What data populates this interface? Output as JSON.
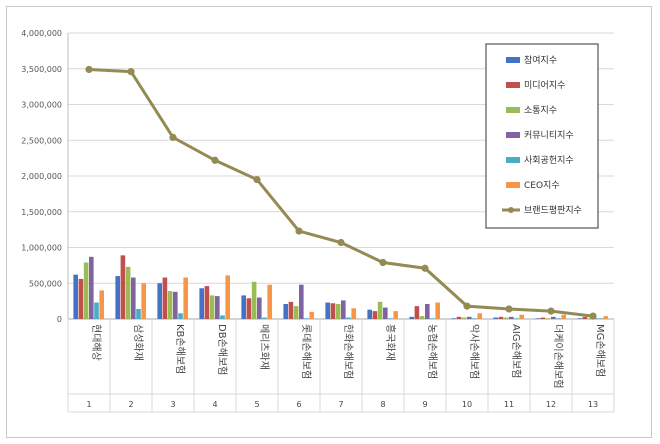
{
  "chart_data": {
    "type": "bar",
    "title": "",
    "xlabel": "",
    "ylabel": "",
    "ylim": [
      0,
      4000000
    ],
    "y_ticks": [
      "0",
      "500,000",
      "1,000,000",
      "1,500,000",
      "2,000,000",
      "2,500,000",
      "3,000,000",
      "3,500,000",
      "4,000,000"
    ],
    "grid": "horizontal",
    "legend_position": "right",
    "categories": [
      "현대해상",
      "삼성화재",
      "KB손해보험",
      "DB손해보험",
      "메리츠화재",
      "롯데손해보험",
      "한화손해보험",
      "흥국화재",
      "농협손해보험",
      "악사손해보험",
      "AIG손해보험",
      "더케이손해보험",
      "MG손해보험"
    ],
    "ranks": [
      "1",
      "2",
      "3",
      "4",
      "5",
      "6",
      "7",
      "8",
      "9",
      "10",
      "11",
      "12",
      "13"
    ],
    "series": [
      {
        "name": "참여지수",
        "color": "#4472c4",
        "values": [
          620000,
          600000,
          500000,
          430000,
          330000,
          210000,
          230000,
          130000,
          30000,
          10000,
          20000,
          10000,
          10000
        ]
      },
      {
        "name": "미디어지수",
        "color": "#c0504d",
        "values": [
          560000,
          890000,
          580000,
          460000,
          290000,
          240000,
          220000,
          110000,
          180000,
          30000,
          30000,
          20000,
          30000
        ]
      },
      {
        "name": "소통지수",
        "color": "#9bbb59",
        "values": [
          790000,
          730000,
          390000,
          330000,
          520000,
          180000,
          210000,
          240000,
          40000,
          20000,
          20000,
          10000,
          10000
        ]
      },
      {
        "name": "커뮤니티지수",
        "color": "#8064a2",
        "values": [
          870000,
          580000,
          380000,
          320000,
          300000,
          480000,
          260000,
          160000,
          210000,
          30000,
          30000,
          30000,
          10000
        ]
      },
      {
        "name": "사회공헌지수",
        "color": "#4bacc6",
        "values": [
          230000,
          140000,
          80000,
          50000,
          20000,
          10000,
          20000,
          10000,
          10000,
          10000,
          10000,
          10000,
          10000
        ]
      },
      {
        "name": "CEO지수",
        "color": "#f79646",
        "values": [
          400000,
          500000,
          580000,
          610000,
          480000,
          100000,
          150000,
          110000,
          230000,
          80000,
          60000,
          60000,
          40000
        ]
      },
      {
        "name": "브랜드평판지수",
        "color": "#948a54",
        "type": "line",
        "values": [
          3490000,
          3460000,
          2540000,
          2220000,
          1950000,
          1230000,
          1070000,
          790000,
          710000,
          180000,
          140000,
          110000,
          40000
        ]
      }
    ]
  }
}
